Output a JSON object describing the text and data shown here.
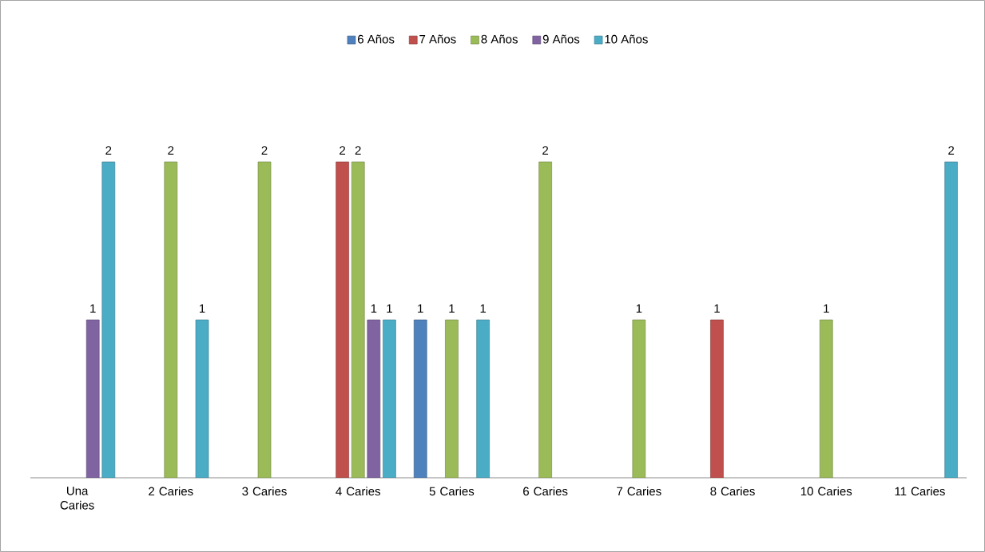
{
  "chart_data": {
    "type": "bar",
    "categories": [
      "Una Caries",
      "2 Caries",
      "3 Caries",
      "4 Caries",
      "5 Caries",
      "6 Caries",
      "7 Caries",
      "8 Caries",
      "10 Caries",
      "11 Caries"
    ],
    "series": [
      {
        "name": "6 Años",
        "color": "#4f81bd",
        "values": [
          null,
          null,
          null,
          null,
          1,
          null,
          null,
          null,
          null,
          null
        ]
      },
      {
        "name": "7 Años",
        "color": "#c0504d",
        "values": [
          null,
          null,
          null,
          2,
          null,
          null,
          null,
          1,
          null,
          null
        ]
      },
      {
        "name": "8 Años",
        "color": "#9bbb59",
        "values": [
          null,
          2,
          2,
          2,
          1,
          2,
          1,
          null,
          1,
          null
        ]
      },
      {
        "name": "9 Años",
        "color": "#8064a2",
        "values": [
          1,
          null,
          null,
          1,
          null,
          null,
          null,
          null,
          null,
          null
        ]
      },
      {
        "name": "10 Años",
        "color": "#4bacc6",
        "values": [
          2,
          1,
          null,
          1,
          1,
          null,
          null,
          null,
          null,
          2
        ]
      }
    ],
    "data_labels": true,
    "legend": "top"
  }
}
